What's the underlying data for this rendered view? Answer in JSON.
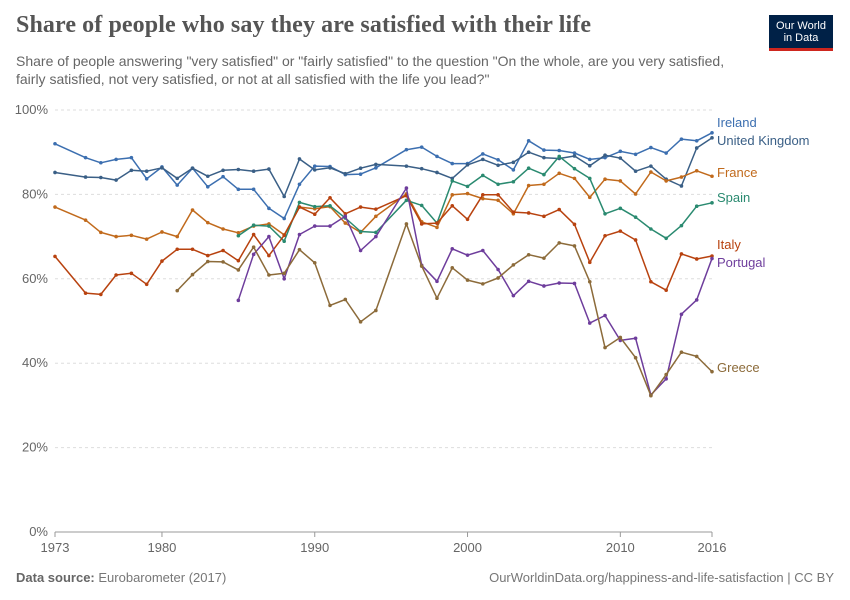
{
  "header": {
    "title": "Share of people who say they are satisfied with their life",
    "subtitle": "Share of people answering \"very satisfied\" or \"fairly satisfied\" to the question \"On the whole, are you very satisfied, fairly satisfied, not very satisfied, or not at all satisfied with the life you lead?\"",
    "logo_line1": "Our World",
    "logo_line2": "in Data"
  },
  "footer": {
    "source_label": "Data source:",
    "source_value": "Eurobarometer (2017)",
    "url": "OurWorldinData.org/happiness-and-life-satisfaction | CC BY"
  },
  "colors": {
    "Ireland": "#3c6fb0",
    "United Kingdom": "#3a5f86",
    "France": "#c16a1c",
    "Spain": "#2a8a70",
    "Italy": "#b8420f",
    "Portugal": "#6e3d9c",
    "Greece": "#8c6b3a"
  },
  "chart_data": {
    "type": "line",
    "xlim": [
      1973,
      2016
    ],
    "ylim": [
      0,
      100
    ],
    "x_ticks": [
      "1973",
      "1980",
      "1990",
      "2000",
      "2010",
      "2016"
    ],
    "y_ticks": [
      "0%",
      "20%",
      "40%",
      "60%",
      "80%",
      "100%"
    ],
    "grid": "horizontal dashed",
    "series": [
      {
        "name": "Ireland",
        "points": [
          [
            1973,
            92
          ],
          [
            1975,
            88.7
          ],
          [
            1976,
            87.5
          ],
          [
            1977,
            88.3
          ],
          [
            1978,
            88.7
          ],
          [
            1979,
            83.7
          ],
          [
            1980,
            86.5
          ],
          [
            1981,
            82.2
          ],
          [
            1982,
            86.2
          ],
          [
            1983,
            81.8
          ],
          [
            1984,
            84.2
          ],
          [
            1985,
            81.2
          ],
          [
            1986,
            81.2
          ],
          [
            1987,
            76.7
          ],
          [
            1988,
            74.3
          ],
          [
            1989,
            82.4
          ],
          [
            1990,
            86.7
          ],
          [
            1991,
            86.6
          ],
          [
            1992,
            84.7
          ],
          [
            1993,
            84.8
          ],
          [
            1994,
            86.3
          ],
          [
            1996,
            90.6
          ],
          [
            1997,
            91.2
          ],
          [
            1998,
            89
          ],
          [
            1999,
            87.3
          ],
          [
            2000,
            87.3
          ],
          [
            2001,
            89.6
          ],
          [
            2002,
            88.2
          ],
          [
            2003,
            85.8
          ],
          [
            2004,
            92.7
          ],
          [
            2005,
            90.5
          ],
          [
            2006,
            90.4
          ],
          [
            2007,
            89.8
          ],
          [
            2008,
            88.3
          ],
          [
            2009,
            88.7
          ],
          [
            2010,
            90.2
          ],
          [
            2011,
            89.5
          ],
          [
            2012,
            91.1
          ],
          [
            2013,
            89.8
          ],
          [
            2014,
            93.1
          ],
          [
            2015,
            92.7
          ],
          [
            2016,
            94.6
          ]
        ]
      },
      {
        "name": "United Kingdom",
        "points": [
          [
            1973,
            85.2
          ],
          [
            1975,
            84.1
          ],
          [
            1976,
            84
          ],
          [
            1977,
            83.4
          ],
          [
            1978,
            85.7
          ],
          [
            1979,
            85.5
          ],
          [
            1980,
            86.3
          ],
          [
            1981,
            83.8
          ],
          [
            1982,
            86.2
          ],
          [
            1983,
            84.3
          ],
          [
            1984,
            85.7
          ],
          [
            1985,
            85.9
          ],
          [
            1986,
            85.5
          ],
          [
            1987,
            86
          ],
          [
            1988,
            79.5
          ],
          [
            1989,
            88.4
          ],
          [
            1990,
            85.8
          ],
          [
            1991,
            86.3
          ],
          [
            1992,
            84.9
          ],
          [
            1993,
            86.2
          ],
          [
            1994,
            87.1
          ],
          [
            1996,
            86.7
          ],
          [
            1997,
            86.1
          ],
          [
            1998,
            85.2
          ],
          [
            1999,
            83.8
          ],
          [
            2000,
            87
          ],
          [
            2001,
            88.3
          ],
          [
            2002,
            86.9
          ],
          [
            2003,
            87.6
          ],
          [
            2004,
            90
          ],
          [
            2005,
            88.7
          ],
          [
            2006,
            88.5
          ],
          [
            2007,
            89.1
          ],
          [
            2008,
            86.8
          ],
          [
            2009,
            89.3
          ],
          [
            2010,
            88.6
          ],
          [
            2011,
            85.5
          ],
          [
            2012,
            86.7
          ],
          [
            2013,
            83.6
          ],
          [
            2014,
            82
          ],
          [
            2015,
            91
          ],
          [
            2016,
            93.4
          ]
        ]
      },
      {
        "name": "France",
        "points": [
          [
            1973,
            77
          ],
          [
            1975,
            73.9
          ],
          [
            1976,
            71
          ],
          [
            1977,
            70
          ],
          [
            1978,
            70.3
          ],
          [
            1979,
            69.4
          ],
          [
            1980,
            71.1
          ],
          [
            1981,
            70
          ],
          [
            1982,
            76.3
          ],
          [
            1983,
            73.3
          ],
          [
            1984,
            71.8
          ],
          [
            1985,
            70.9
          ],
          [
            1986,
            72.5
          ],
          [
            1987,
            73
          ],
          [
            1988,
            70.4
          ],
          [
            1989,
            77
          ],
          [
            1990,
            76.6
          ],
          [
            1991,
            77.1
          ],
          [
            1992,
            73.2
          ],
          [
            1993,
            71
          ],
          [
            1994,
            74.8
          ],
          [
            1996,
            80.1
          ],
          [
            1997,
            73.5
          ],
          [
            1998,
            72.2
          ],
          [
            1999,
            79.9
          ],
          [
            2000,
            80.2
          ],
          [
            2001,
            79
          ],
          [
            2002,
            78.6
          ],
          [
            2003,
            75.4
          ],
          [
            2004,
            82.1
          ],
          [
            2005,
            82.4
          ],
          [
            2006,
            85
          ],
          [
            2007,
            83.8
          ],
          [
            2008,
            79.3
          ],
          [
            2009,
            83.6
          ],
          [
            2010,
            83.2
          ],
          [
            2011,
            80.1
          ],
          [
            2012,
            85.3
          ],
          [
            2013,
            83.2
          ],
          [
            2014,
            84.1
          ],
          [
            2015,
            85.6
          ],
          [
            2016,
            84.3
          ]
        ]
      },
      {
        "name": "Spain",
        "points": [
          [
            1985,
            70.2
          ],
          [
            1986,
            72.7
          ],
          [
            1987,
            72.5
          ],
          [
            1988,
            68.9
          ],
          [
            1989,
            78.1
          ],
          [
            1990,
            77.1
          ],
          [
            1991,
            77.3
          ],
          [
            1992,
            74.4
          ],
          [
            1993,
            71.2
          ],
          [
            1994,
            71
          ],
          [
            1996,
            78.6
          ],
          [
            1997,
            77.4
          ],
          [
            1998,
            73.2
          ],
          [
            1999,
            83.2
          ],
          [
            2000,
            81.9
          ],
          [
            2001,
            84.5
          ],
          [
            2002,
            82.4
          ],
          [
            2003,
            83
          ],
          [
            2004,
            86.2
          ],
          [
            2005,
            84.7
          ],
          [
            2006,
            89
          ],
          [
            2007,
            86.1
          ],
          [
            2008,
            83.8
          ],
          [
            2009,
            75.4
          ],
          [
            2010,
            76.7
          ],
          [
            2011,
            74.6
          ],
          [
            2012,
            71.8
          ],
          [
            2013,
            69.6
          ],
          [
            2014,
            72.6
          ],
          [
            2015,
            77.2
          ],
          [
            2016,
            78
          ]
        ]
      },
      {
        "name": "Italy",
        "points": [
          [
            1973,
            65.3
          ],
          [
            1975,
            56.6
          ],
          [
            1976,
            56.3
          ],
          [
            1977,
            60.9
          ],
          [
            1978,
            61.3
          ],
          [
            1979,
            58.7
          ],
          [
            1980,
            64.2
          ],
          [
            1981,
            67
          ],
          [
            1982,
            67
          ],
          [
            1983,
            65.5
          ],
          [
            1984,
            66.7
          ],
          [
            1985,
            64.3
          ],
          [
            1986,
            70.5
          ],
          [
            1987,
            65.5
          ],
          [
            1988,
            70.3
          ],
          [
            1989,
            77
          ],
          [
            1990,
            75.3
          ],
          [
            1991,
            79.2
          ],
          [
            1992,
            75.4
          ],
          [
            1993,
            77
          ],
          [
            1994,
            76.5
          ],
          [
            1996,
            79.7
          ],
          [
            1997,
            73
          ],
          [
            1998,
            73.2
          ],
          [
            1999,
            77.3
          ],
          [
            2000,
            74.1
          ],
          [
            2001,
            79.9
          ],
          [
            2002,
            79.9
          ],
          [
            2003,
            75.8
          ],
          [
            2004,
            75.6
          ],
          [
            2005,
            74.8
          ],
          [
            2006,
            76.4
          ],
          [
            2007,
            72.9
          ],
          [
            2008,
            63.9
          ],
          [
            2009,
            70.2
          ],
          [
            2010,
            71.3
          ],
          [
            2011,
            69.2
          ],
          [
            2012,
            59.3
          ],
          [
            2013,
            57.3
          ],
          [
            2014,
            65.9
          ],
          [
            2015,
            64.7
          ],
          [
            2016,
            65.4
          ]
        ]
      },
      {
        "name": "Portugal",
        "points": [
          [
            1985,
            54.9
          ],
          [
            1986,
            65.8
          ],
          [
            1987,
            70
          ],
          [
            1988,
            60
          ],
          [
            1989,
            70.5
          ],
          [
            1990,
            72.5
          ],
          [
            1991,
            72.5
          ],
          [
            1992,
            74.8
          ],
          [
            1993,
            66.7
          ],
          [
            1994,
            70
          ],
          [
            1996,
            81.5
          ],
          [
            1997,
            63.2
          ],
          [
            1998,
            59.4
          ],
          [
            1999,
            67.1
          ],
          [
            2000,
            65.6
          ],
          [
            2001,
            66.7
          ],
          [
            2002,
            62.2
          ],
          [
            2003,
            56
          ],
          [
            2004,
            59.4
          ],
          [
            2005,
            58.3
          ],
          [
            2006,
            59
          ],
          [
            2007,
            58.9
          ],
          [
            2008,
            49.5
          ],
          [
            2009,
            51.3
          ],
          [
            2010,
            45.4
          ],
          [
            2011,
            45.9
          ],
          [
            2012,
            32.5
          ],
          [
            2013,
            36.3
          ],
          [
            2014,
            51.6
          ],
          [
            2015,
            55
          ],
          [
            2016,
            64.8
          ]
        ]
      },
      {
        "name": "Greece",
        "points": [
          [
            1981,
            57.2
          ],
          [
            1982,
            61
          ],
          [
            1983,
            64.1
          ],
          [
            1984,
            64
          ],
          [
            1985,
            62.1
          ],
          [
            1986,
            67.5
          ],
          [
            1987,
            60.9
          ],
          [
            1988,
            61.3
          ],
          [
            1989,
            66.9
          ],
          [
            1990,
            63.8
          ],
          [
            1991,
            53.7
          ],
          [
            1992,
            55.1
          ],
          [
            1993,
            49.8
          ],
          [
            1994,
            52.5
          ],
          [
            1996,
            73
          ],
          [
            1997,
            63
          ],
          [
            1998,
            55.4
          ],
          [
            1999,
            62.6
          ],
          [
            2000,
            59.7
          ],
          [
            2001,
            58.8
          ],
          [
            2002,
            60.2
          ],
          [
            2003,
            63.3
          ],
          [
            2004,
            65.7
          ],
          [
            2005,
            64.9
          ],
          [
            2006,
            68.5
          ],
          [
            2007,
            67.8
          ],
          [
            2008,
            59.3
          ],
          [
            2009,
            43.7
          ],
          [
            2010,
            46.1
          ],
          [
            2011,
            41.3
          ],
          [
            2012,
            32.3
          ],
          [
            2013,
            37.3
          ],
          [
            2014,
            42.6
          ],
          [
            2015,
            41.6
          ],
          [
            2016,
            38
          ]
        ]
      }
    ]
  }
}
